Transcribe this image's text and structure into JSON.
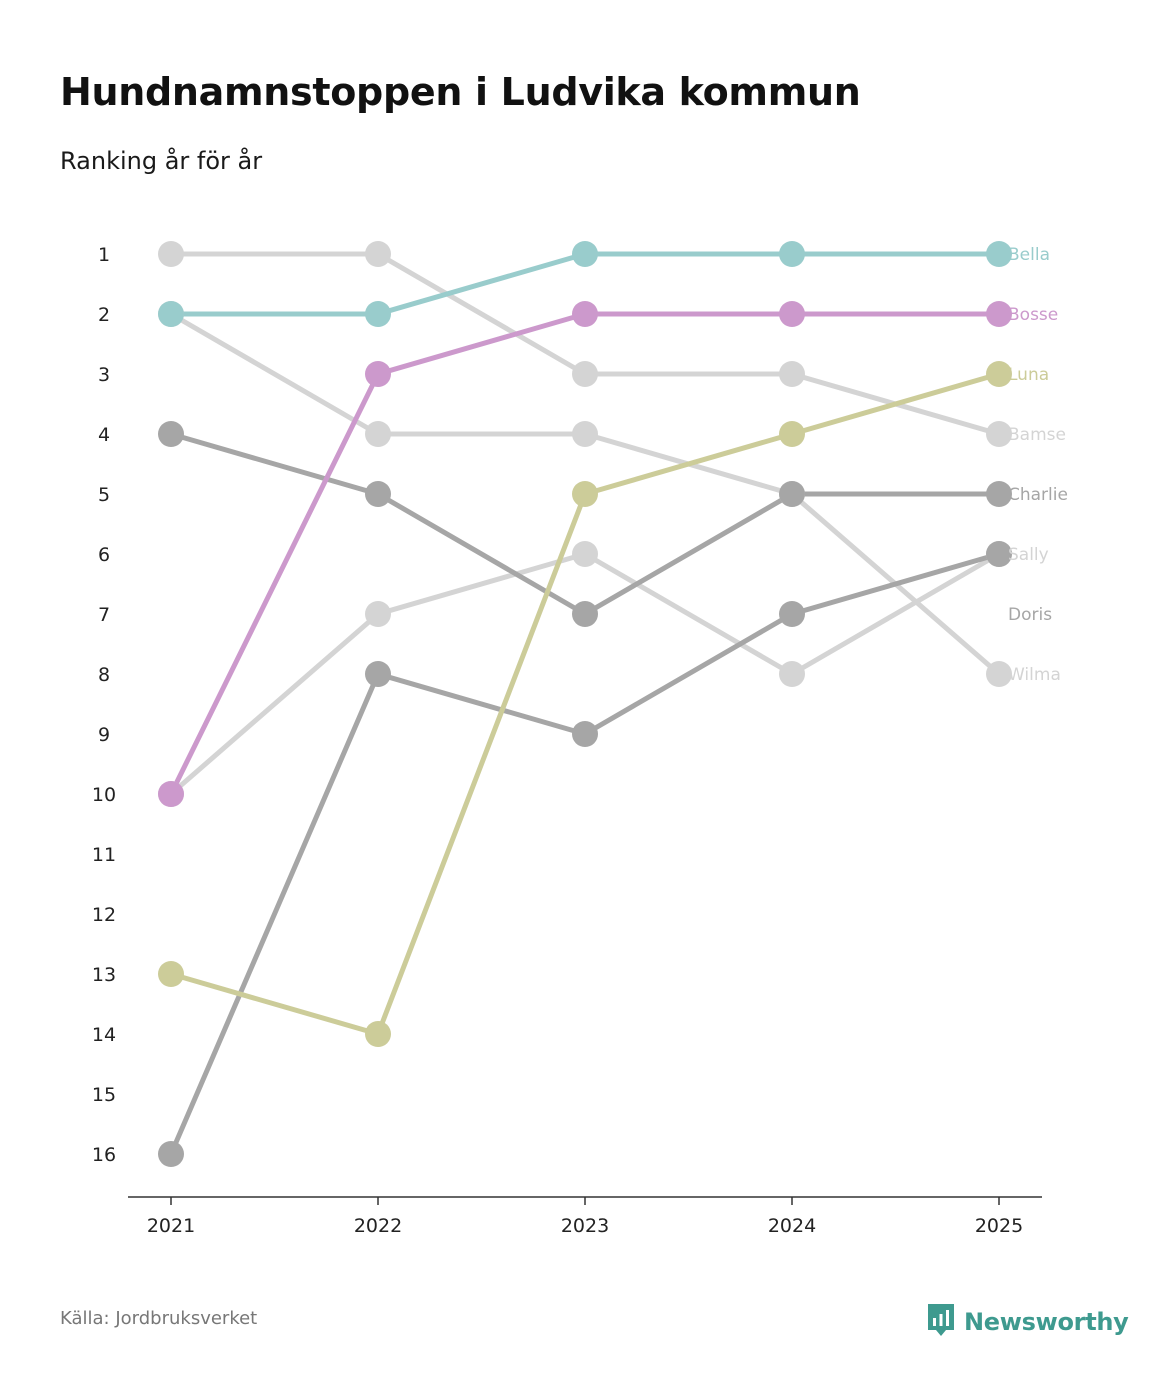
{
  "header": {
    "title": "Hundnamnstoppen i Ludvika kommun",
    "subtitle": "Ranking år för år"
  },
  "footer": {
    "source": "Källa: Jordbruksverket",
    "brand": "Newsworthy",
    "brand_icon": "newsworthy-logo-icon"
  },
  "colors": {
    "bella": "#99cccc",
    "bosse": "#cc99cc",
    "luna": "#cccc99",
    "grey_dark": "#a6a6a6",
    "grey_light": "#d4d4d4",
    "axis": "#333333",
    "brand": "#3e9a8f"
  },
  "chart_data": {
    "type": "bump",
    "title": "Hundnamnstoppen i Ludvika kommun",
    "subtitle": "Ranking år för år",
    "x": [
      "2021",
      "2022",
      "2023",
      "2024",
      "2025"
    ],
    "y_ticks": [
      "1",
      "2",
      "3",
      "4",
      "5",
      "6",
      "7",
      "8",
      "9",
      "10",
      "11",
      "12",
      "13",
      "14",
      "15",
      "16"
    ],
    "ylim": [
      1,
      16
    ],
    "y_reversed": true,
    "series": [
      {
        "name": "Bamse",
        "ranks": [
          1,
          1,
          3,
          3,
          4
        ],
        "color": "#d4d4d4"
      },
      {
        "name": "Wilma",
        "ranks": [
          2,
          4,
          4,
          5,
          8
        ],
        "color": "#d4d4d4"
      },
      {
        "name": "Sally",
        "ranks": [
          10,
          7,
          6,
          8,
          6
        ],
        "color": "#d4d4d4"
      },
      {
        "name": "Charlie",
        "ranks": [
          4,
          5,
          7,
          5,
          5
        ],
        "color": "#a6a6a6"
      },
      {
        "name": "Doris",
        "ranks": [
          16,
          8,
          9,
          7,
          6
        ],
        "color": "#a6a6a6"
      },
      {
        "name": "Luna",
        "ranks": [
          13,
          14,
          5,
          4,
          3
        ],
        "color": "#cccc99"
      },
      {
        "name": "Bosse",
        "ranks": [
          10,
          3,
          2,
          2,
          2
        ],
        "color": "#cc99cc"
      },
      {
        "name": "Bella",
        "ranks": [
          2,
          2,
          1,
          1,
          1
        ],
        "color": "#99cccc"
      }
    ],
    "end_labels": [
      {
        "name": "Bella",
        "label_rank": 1,
        "color": "#99cccc"
      },
      {
        "name": "Bosse",
        "label_rank": 2,
        "color": "#cc99cc"
      },
      {
        "name": "Luna",
        "label_rank": 3,
        "color": "#cccc99"
      },
      {
        "name": "Bamse",
        "label_rank": 4,
        "color": "#d4d4d4"
      },
      {
        "name": "Charlie",
        "label_rank": 5,
        "color": "#a6a6a6"
      },
      {
        "name": "Sally",
        "label_rank": 6,
        "color": "#d4d4d4"
      },
      {
        "name": "Doris",
        "label_rank": 7,
        "color": "#a6a6a6"
      },
      {
        "name": "Wilma",
        "label_rank": 8,
        "color": "#d4d4d4"
      }
    ]
  }
}
